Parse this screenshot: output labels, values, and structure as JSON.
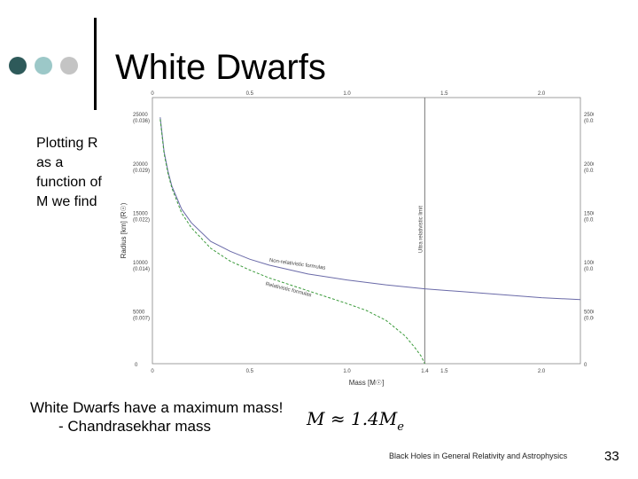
{
  "slide": {
    "title": "White Dwarfs",
    "side_text": "Plotting R as a function of M we find",
    "bottom_line1": "White Dwarfs have a maximum mass!",
    "bottom_line2": "- Chandrasekhar mass",
    "formula": {
      "lhs": "M",
      "approx": "≈",
      "rhs": "1.4M",
      "sub": "e"
    },
    "footer": "Black Holes in General Relativity and Astrophysics",
    "page_number": "33"
  },
  "colors": {
    "dot1": "#2e5a5a",
    "dot2": "#9cc8c8",
    "dot3": "#c4c4c4",
    "nonrel_curve": "#6a6aa8",
    "rel_curve": "#3a9a3a"
  },
  "chart_data": {
    "type": "line",
    "xlabel": "Mass [M☉]",
    "ylabel": "Radius [km] (R☉)",
    "xlim": [
      0,
      2.2
    ],
    "ylim": [
      0,
      27000
    ],
    "x_ticks_top": [
      "0",
      "0.5",
      "1.0",
      "1.5",
      "2.0"
    ],
    "x_ticks_bottom": [
      "0",
      "0.5",
      "1.0",
      "1.4",
      "1.5",
      "2.0"
    ],
    "y_ticks": [
      {
        "value": 25000,
        "label": "25000",
        "solar": "(0.036)"
      },
      {
        "value": 20000,
        "label": "20000",
        "solar": "(0.029)"
      },
      {
        "value": 15000,
        "label": "15000",
        "solar": "(0.022)"
      },
      {
        "value": 10000,
        "label": "10000",
        "solar": "(0.014)"
      },
      {
        "value": 5000,
        "label": "5000",
        "solar": "(0.007)"
      }
    ],
    "vline": {
      "x": 1.4,
      "label": "Ultra relativistic limit"
    },
    "series": [
      {
        "name": "Non-relativistic formulas",
        "x": [
          0.04,
          0.06,
          0.08,
          0.1,
          0.15,
          0.2,
          0.3,
          0.4,
          0.5,
          0.6,
          0.8,
          1.0,
          1.2,
          1.4,
          1.6,
          1.8,
          2.0,
          2.2
        ],
        "y": [
          25000,
          21500,
          19500,
          18000,
          15700,
          14300,
          12400,
          11400,
          10600,
          10000,
          9100,
          8500,
          8000,
          7600,
          7300,
          7000,
          6700,
          6500
        ]
      },
      {
        "name": "Relativistic formulas",
        "x": [
          0.04,
          0.06,
          0.08,
          0.1,
          0.15,
          0.2,
          0.3,
          0.4,
          0.5,
          0.6,
          0.8,
          1.0,
          1.1,
          1.2,
          1.3,
          1.35,
          1.38,
          1.4
        ],
        "y": [
          24800,
          21300,
          19300,
          17800,
          15300,
          13800,
          11700,
          10400,
          9500,
          8700,
          7400,
          6100,
          5400,
          4400,
          2800,
          1600,
          800,
          0
        ]
      }
    ]
  }
}
